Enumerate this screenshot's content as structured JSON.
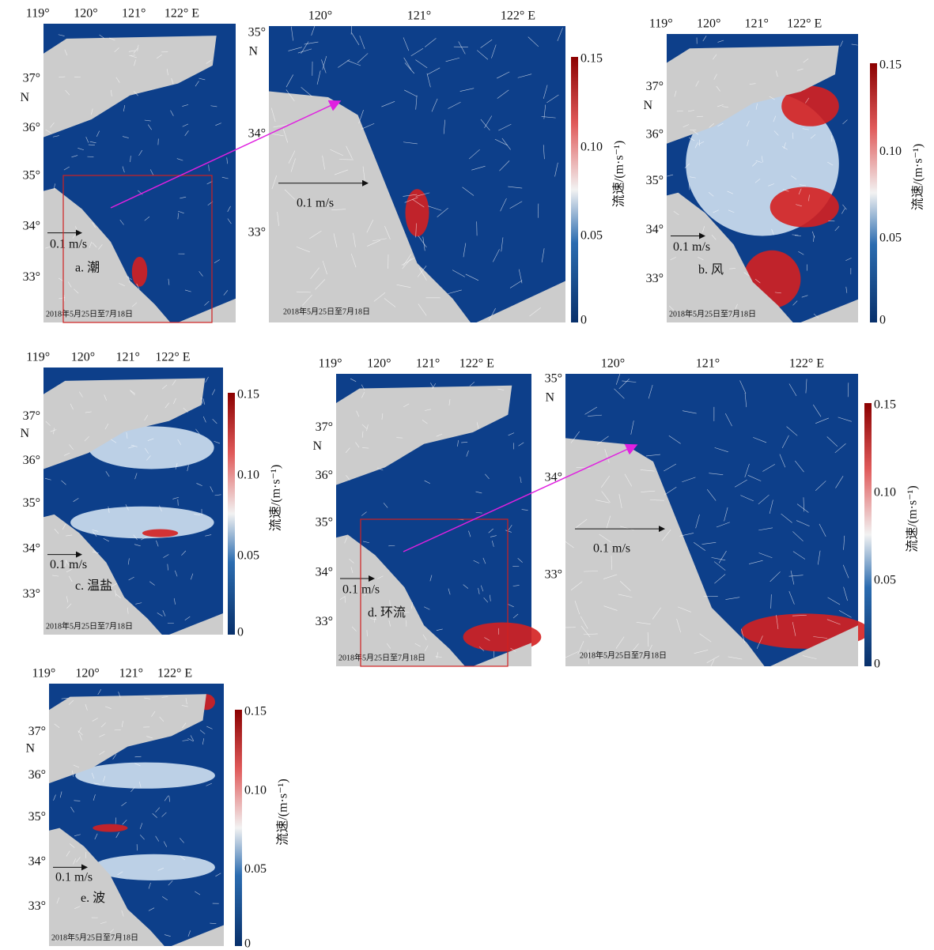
{
  "panels": [
    {
      "lon_ticks": [
        "119°",
        "120°",
        "121°",
        "122° E"
      ],
      "lat_ticks": [
        "37°",
        "36°",
        "35°",
        "34°",
        "33°"
      ],
      "lat_unit": "N",
      "scale": "0.1 m/s",
      "label": "a. 潮",
      "date": "2018年5月25日至7月18日"
    },
    {
      "lon_ticks": [
        "119°",
        "120°",
        "121°",
        "122° E"
      ],
      "lat_ticks": [
        "37°",
        "36°",
        "35°",
        "34°",
        "33°"
      ],
      "lat_unit": "N",
      "scale": "0.1 m/s",
      "label": "b. 风",
      "date": "2018年5月25日至7月18日"
    },
    {
      "lon_ticks": [
        "119°",
        "120°",
        "121°",
        "122° E"
      ],
      "lat_ticks": [
        "37°",
        "36°",
        "35°",
        "34°",
        "33°"
      ],
      "lat_unit": "N",
      "scale": "0.1 m/s",
      "label": "c. 温盐",
      "date": "2018年5月25日至7月18日"
    },
    {
      "lon_ticks": [
        "119°",
        "120°",
        "121°",
        "122° E"
      ],
      "lat_ticks": [
        "37°",
        "36°",
        "35°",
        "34°",
        "33°"
      ],
      "lat_unit": "N",
      "scale": "0.1 m/s",
      "label": "d. 环流",
      "date": "2018年5月25日至7月18日"
    },
    {
      "lon_ticks": [
        "119°",
        "120°",
        "121°",
        "122° E"
      ],
      "lat_ticks": [
        "37°",
        "36°",
        "35°",
        "34°",
        "33°"
      ],
      "lat_unit": "N",
      "scale": "0.1 m/s",
      "label": "e. 波",
      "date": "2018年5月25日至7月18日"
    }
  ],
  "zooms": [
    {
      "lon_ticks": [
        "120°",
        "121°",
        "122° E"
      ],
      "lat_ticks": [
        "35°",
        "34°",
        "33°"
      ],
      "lat_unit": "N",
      "scale": "0.1 m/s",
      "date": "2018年5月25日至7月18日"
    },
    {
      "lon_ticks": [
        "120°",
        "121°",
        "122° E"
      ],
      "lat_ticks": [
        "35°",
        "34°",
        "33°"
      ],
      "lat_unit": "N",
      "scale": "0.1 m/s",
      "date": "2018年5月25日至7月18日"
    }
  ],
  "colorbars": [
    {
      "ticks": [
        "0.15",
        "0.10",
        "0.05",
        "0"
      ],
      "title": "流速/(m·s⁻¹)"
    },
    {
      "ticks": [
        "0.15",
        "0.10",
        "0.05",
        "0"
      ],
      "title": "流速/(m·s⁻¹)"
    },
    {
      "ticks": [
        "0.15",
        "0.10",
        "0.05",
        "0"
      ],
      "title": "流速/(m·s⁻¹)"
    },
    {
      "ticks": [
        "0.15",
        "0.10",
        "0.05",
        "0"
      ],
      "title": "流速/(m·s⁻¹)"
    },
    {
      "ticks": [
        "0.15",
        "0.10",
        "0.05",
        "0"
      ],
      "title": "流速/(m·s⁻¹)"
    }
  ]
}
